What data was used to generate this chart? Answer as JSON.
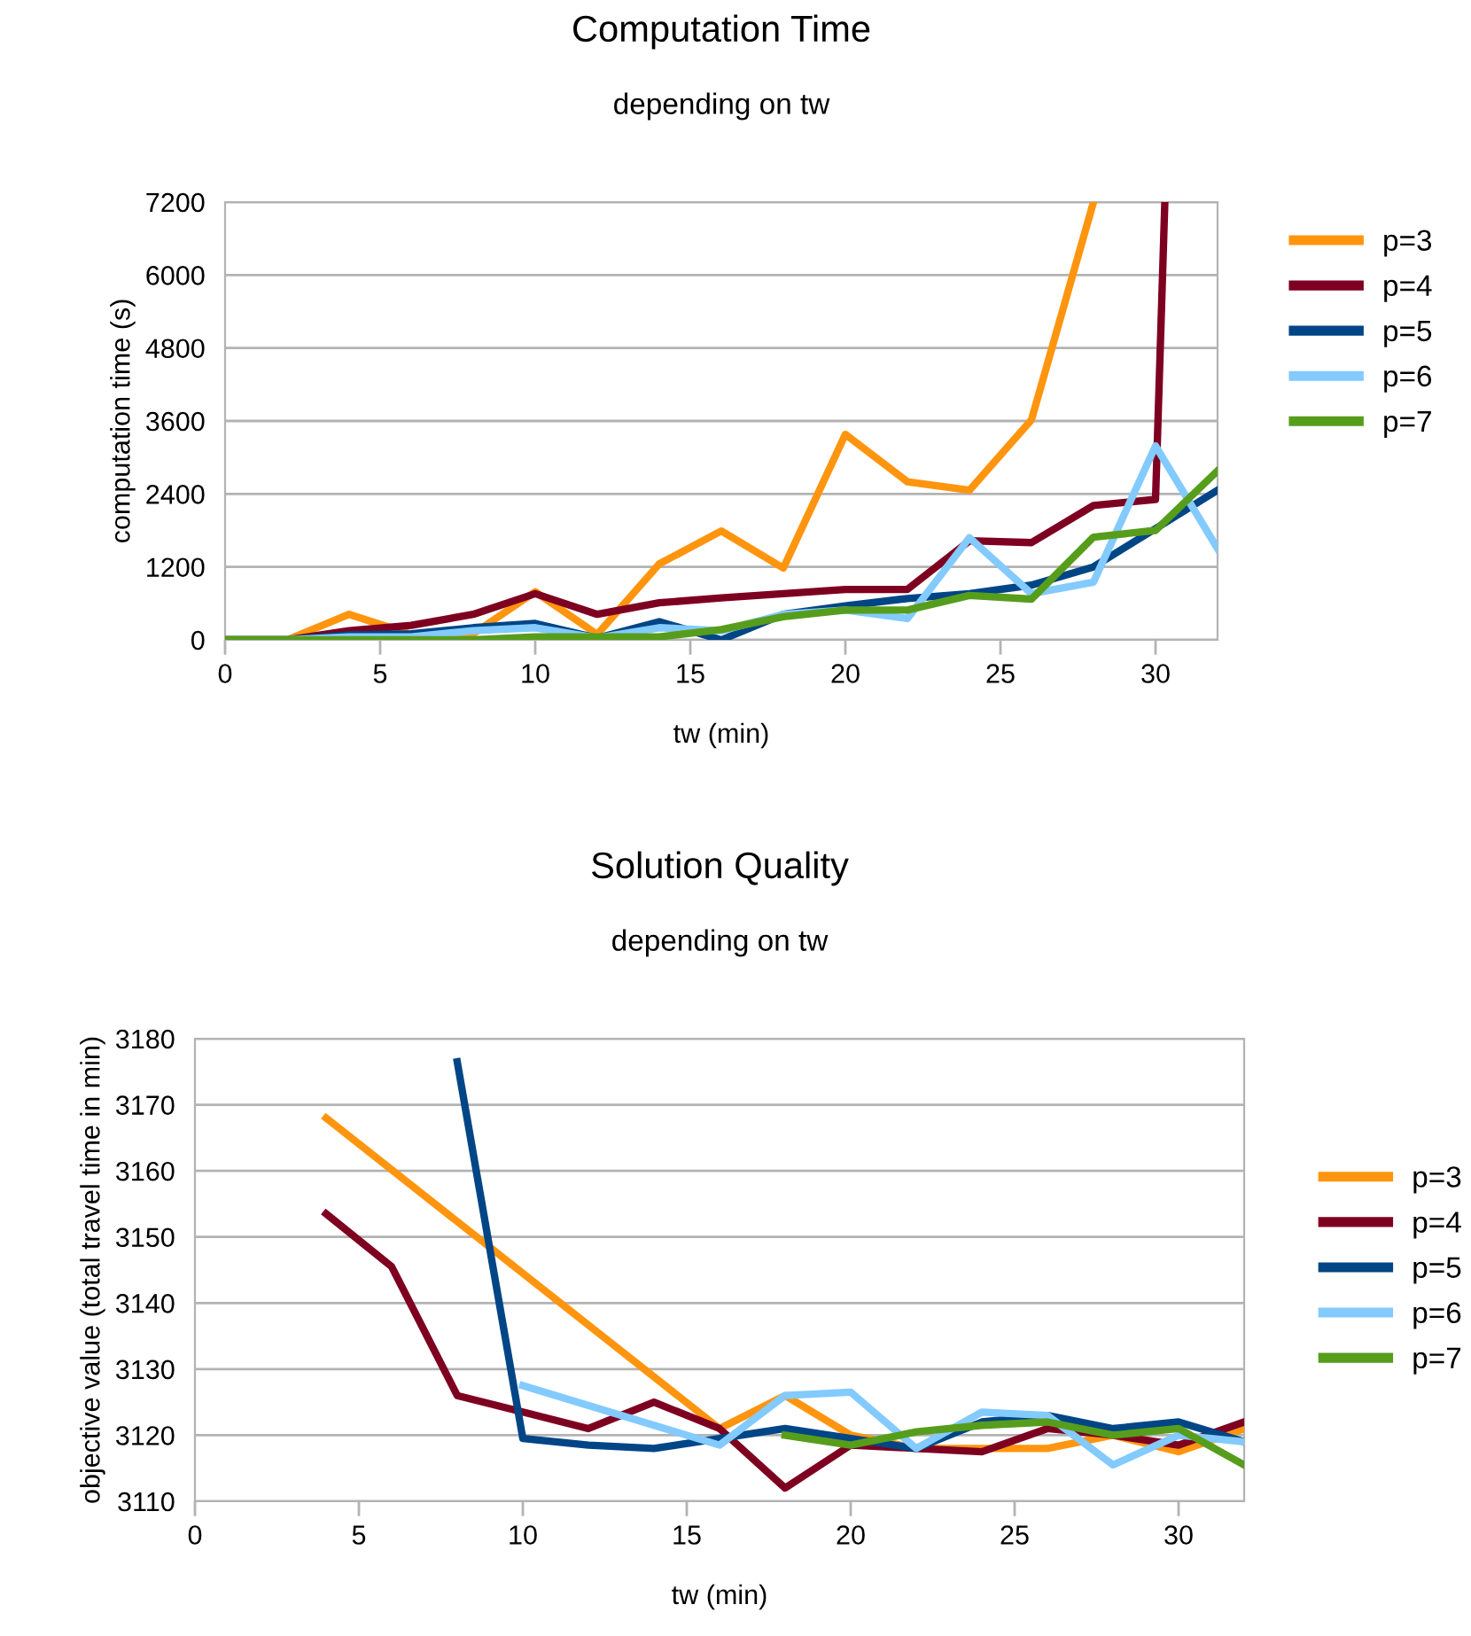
{
  "chart_data": [
    {
      "type": "line",
      "title": "Computation Time",
      "subtitle": "depending on tw",
      "xlabel": "tw (min)",
      "ylabel": "computation time (s)",
      "xlim": [
        0,
        32
      ],
      "xticks": [
        0,
        5,
        10,
        15,
        20,
        25,
        30
      ],
      "ylim": [
        0,
        7200
      ],
      "yticks": [
        0,
        1200,
        2400,
        3600,
        4800,
        6000,
        7200
      ],
      "grid": "y",
      "legend": "right",
      "line_style": "solid",
      "marker": "none",
      "x": [
        0,
        2,
        4,
        6,
        8,
        10,
        12,
        14,
        16,
        18,
        20,
        22,
        24,
        26,
        28,
        30,
        32
      ],
      "series": [
        {
          "name": "p=3",
          "color": "#ff950e",
          "x": [
            0,
            2,
            4,
            6,
            8,
            10,
            12,
            14,
            16,
            18,
            20,
            22,
            24,
            26,
            28
          ],
          "values": [
            0,
            0,
            420,
            90,
            100,
            790,
            90,
            1250,
            1790,
            1180,
            3380,
            2600,
            2460,
            3620,
            7200
          ]
        },
        {
          "name": "p=4",
          "color": "#7e0021",
          "x": [
            0,
            2,
            4,
            6,
            8,
            10,
            12,
            14,
            16,
            18,
            20,
            22,
            24,
            26,
            28,
            30,
            30.3
          ],
          "values": [
            0,
            0,
            150,
            240,
            420,
            760,
            420,
            610,
            690,
            760,
            830,
            830,
            1630,
            1600,
            2210,
            2310,
            7200
          ]
        },
        {
          "name": "p=5",
          "color": "#004586",
          "values": [
            0,
            0,
            80,
            100,
            200,
            270,
            30,
            300,
            0,
            420,
            560,
            680,
            760,
            900,
            1200,
            1830,
            2460
          ]
        },
        {
          "name": "p=6",
          "color": "#83caff",
          "values": [
            0,
            0,
            50,
            50,
            150,
            200,
            30,
            200,
            150,
            420,
            490,
            350,
            1680,
            760,
            950,
            3190,
            1500
          ]
        },
        {
          "name": "p=7",
          "color": "#579d1c",
          "values": [
            0,
            0,
            0,
            0,
            0,
            50,
            50,
            50,
            170,
            380,
            490,
            490,
            730,
            670,
            1690,
            1800,
            2780
          ]
        }
      ]
    },
    {
      "type": "line",
      "title": "Solution Quality",
      "subtitle": "depending on tw",
      "xlabel": "tw (min)",
      "ylabel": "objective value (total travel time in min)",
      "xlim": [
        0,
        32
      ],
      "xticks": [
        0,
        5,
        10,
        15,
        20,
        25,
        30
      ],
      "ylim": [
        3110,
        3180
      ],
      "yticks": [
        3110,
        3120,
        3130,
        3140,
        3150,
        3160,
        3170,
        3180
      ],
      "grid": "y",
      "legend": "right",
      "line_style": "solid",
      "marker": "none",
      "series": [
        {
          "name": "p=3",
          "color": "#ff950e",
          "x": [
            4,
            16,
            18,
            20,
            22,
            24,
            26,
            28,
            30,
            32
          ],
          "values": [
            3168,
            3121,
            3126,
            3120,
            3118,
            3118,
            3118,
            3120,
            3117.5,
            3121
          ]
        },
        {
          "name": "p=4",
          "color": "#7e0021",
          "x": [
            4,
            6,
            8,
            10,
            12,
            14,
            16,
            18,
            20,
            22,
            24,
            26,
            28,
            30,
            32
          ],
          "values": [
            3153.5,
            3145.5,
            3126,
            3123.5,
            3121,
            3125,
            3121,
            3112,
            3118.5,
            3118,
            3117.5,
            3121,
            3120,
            3118.5,
            3122
          ]
        },
        {
          "name": "p=5",
          "color": "#004586",
          "x": [
            8,
            10,
            12,
            14,
            16,
            18,
            20,
            22,
            24,
            26,
            28,
            30,
            32
          ],
          "values": [
            3176.5,
            3119.5,
            3118.5,
            3118,
            3119.5,
            3121,
            3119.5,
            3118,
            3122,
            3123,
            3121,
            3122,
            3119
          ]
        },
        {
          "name": "p=6",
          "color": "#83caff",
          "x": [
            10,
            16,
            18,
            20,
            22,
            24,
            26,
            28,
            30,
            32
          ],
          "values": [
            3127.5,
            3118.5,
            3126,
            3126.5,
            3118,
            3123.5,
            3123,
            3115.5,
            3120,
            3119
          ]
        },
        {
          "name": "p=7",
          "color": "#579d1c",
          "x": [
            18,
            20,
            22,
            24,
            26,
            28,
            30,
            32
          ],
          "values": [
            3120,
            3118.5,
            3120.5,
            3121.5,
            3122,
            3120,
            3121,
            3115.5
          ]
        }
      ]
    }
  ]
}
